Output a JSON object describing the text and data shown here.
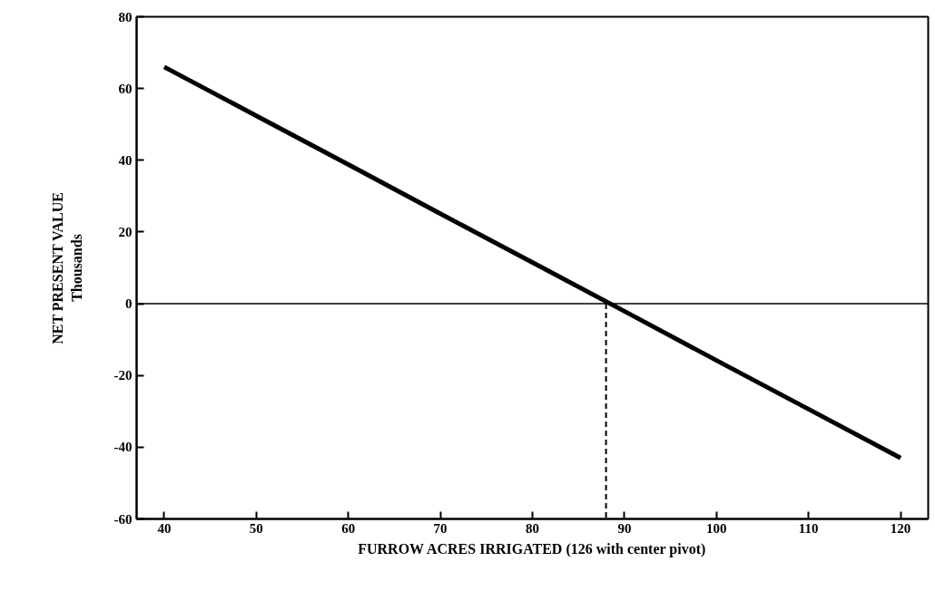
{
  "chart_data": {
    "type": "line",
    "xlabel": "FURROW ACRES IRRIGATED (126 with center pivot)",
    "ylabel": "NET PRESENT VALUE\nThousands",
    "x": [
      40,
      50,
      60,
      70,
      80,
      90,
      100,
      110,
      120
    ],
    "series": [
      {
        "color": "#000000",
        "values": [
          66,
          52.4,
          38.8,
          25.1,
          11.5,
          -2.1,
          -15.8,
          -29.4,
          -43
        ]
      },
      {
        "color": "#000000",
        "x": [
          88,
          88
        ],
        "values": [
          0,
          -60
        ],
        "line_style": "dashed"
      }
    ],
    "xlim": [
      37,
      123
    ],
    "ylim": [
      -60,
      80
    ],
    "xticks": [
      40,
      50,
      60,
      70,
      80,
      90,
      100,
      110,
      120
    ],
    "yticks": [
      -60,
      -40,
      -20,
      0,
      20,
      40,
      60,
      80
    ],
    "ref_lines": [
      {
        "axis": "y",
        "value": 0,
        "color": "#000000"
      }
    ],
    "grid": false,
    "marker": "none",
    "line_style": "solid"
  }
}
